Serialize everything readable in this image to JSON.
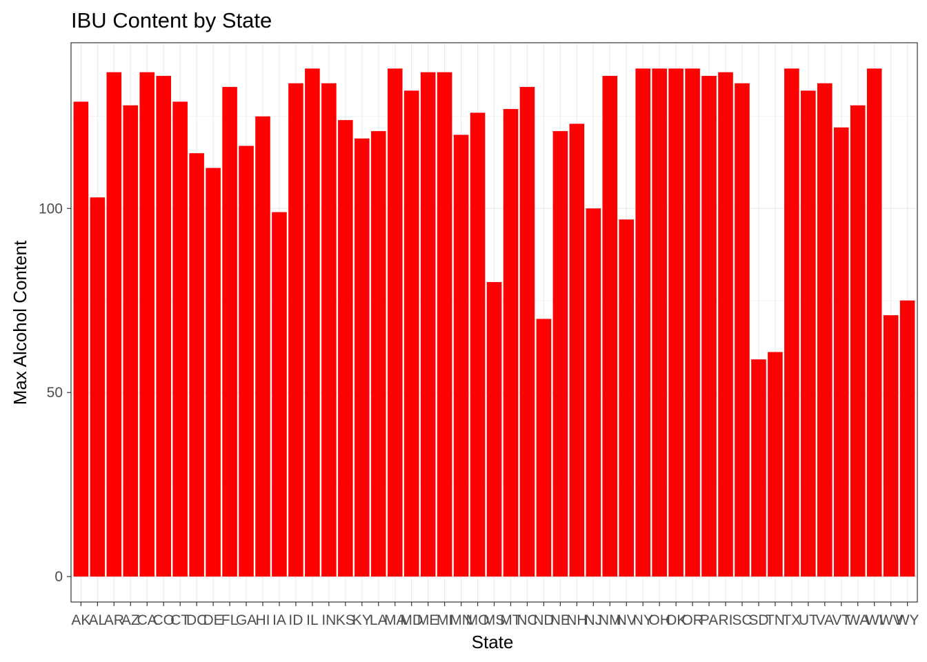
{
  "chart_data": {
    "type": "bar",
    "title": "IBU Content by State",
    "xlabel": "State",
    "ylabel": "Max Alcohol Content",
    "categories": [
      "AK",
      "AL",
      "AR",
      "AZ",
      "CA",
      "CO",
      "CT",
      "DC",
      "DE",
      "FL",
      "GA",
      "HI",
      "IA",
      "ID",
      "IL",
      "IN",
      "KS",
      "KY",
      "LA",
      "MA",
      "MD",
      "ME",
      "MI",
      "MN",
      "MO",
      "MS",
      "MT",
      "NC",
      "ND",
      "NE",
      "NH",
      "NJ",
      "NM",
      "NV",
      "NY",
      "OH",
      "OK",
      "OR",
      "PA",
      "RI",
      "SC",
      "SD",
      "TN",
      "TX",
      "UT",
      "VA",
      "VT",
      "WA",
      "WI",
      "WV",
      "WY"
    ],
    "values": [
      129,
      103,
      137,
      128,
      137,
      136,
      129,
      115,
      111,
      133,
      117,
      125,
      99,
      134,
      138,
      134,
      124,
      119,
      121,
      138,
      132,
      137,
      137,
      120,
      126,
      80,
      127,
      133,
      70,
      121,
      123,
      100,
      136,
      97,
      138,
      138,
      138,
      138,
      136,
      137,
      134,
      59,
      61,
      138,
      132,
      134,
      122,
      128,
      138,
      71,
      75
    ],
    "yticks": [
      0,
      50,
      100
    ],
    "ylim": [
      -6.9,
      145
    ],
    "grid": true,
    "bar_color": "#ff0000",
    "legend": "none"
  }
}
